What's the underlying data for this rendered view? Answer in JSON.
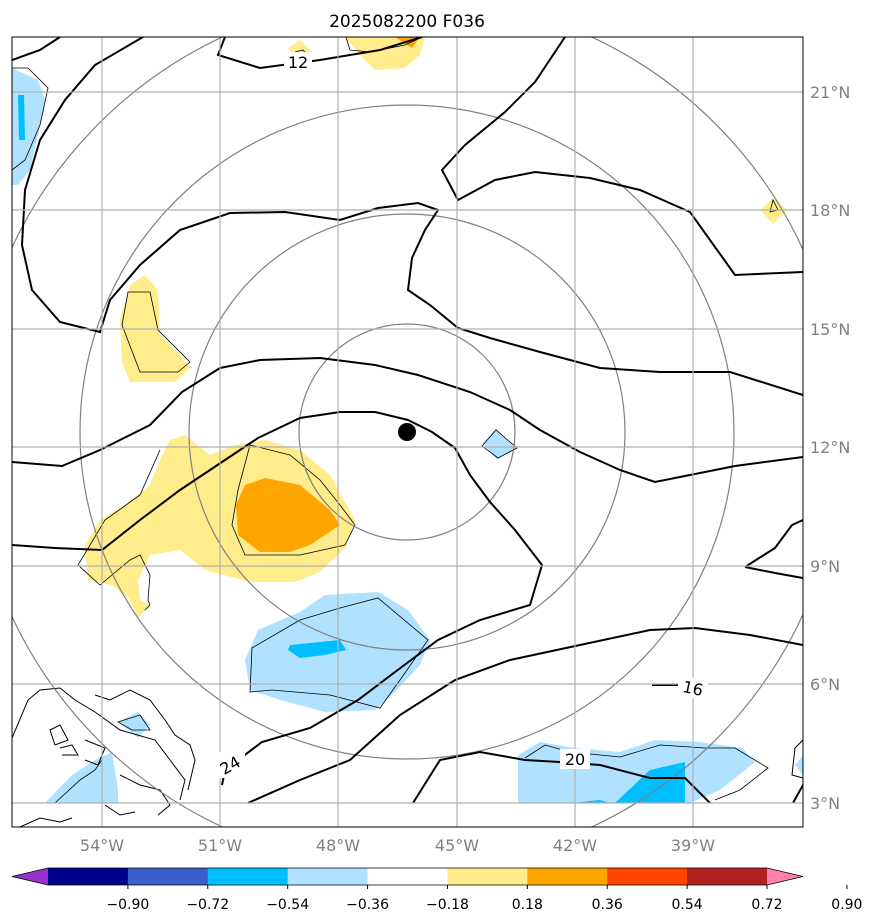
{
  "title": "2025082200 F036",
  "lon_labels": [
    "54°W",
    "51°W",
    "48°W",
    "45°W",
    "42°W",
    "39°W"
  ],
  "lat_labels": [
    "21°N",
    "18°N",
    "15°N",
    "12°N",
    "9°N",
    "6°N",
    "3°N"
  ],
  "contour_labels": [
    "12",
    "16",
    "20",
    "24"
  ],
  "storm_center": {
    "lon": -46.3,
    "lat": 12.4
  },
  "colorbar": {
    "ticks": [
      "−0.90",
      "−0.72",
      "−0.54",
      "−0.36",
      "−0.18",
      "0.18",
      "0.36",
      "0.54",
      "0.72",
      "0.90"
    ],
    "colors": [
      "#9932cc",
      "#00008b",
      "#3a5fcd",
      "#00bfff",
      "#b0e2ff",
      "#ffffff",
      "#ffec8b",
      "#ffa500",
      "#ff4500",
      "#b22222",
      "#ff82ab"
    ]
  }
}
